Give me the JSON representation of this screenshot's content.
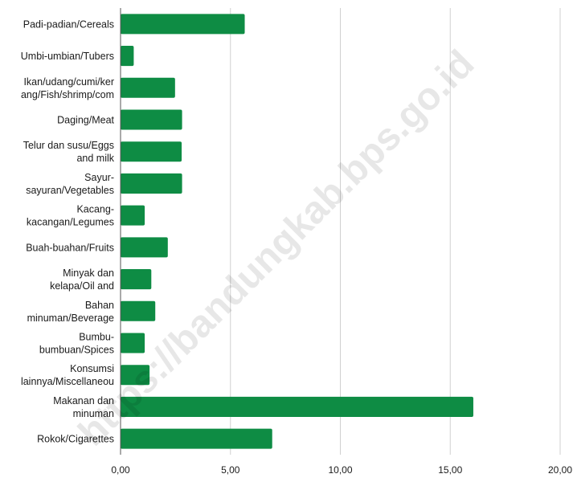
{
  "watermark": "https://bandungkab.bps.go.id",
  "chart_data": {
    "type": "bar",
    "orientation": "horizontal",
    "title": "",
    "xlabel": "",
    "ylabel": "",
    "categories": [
      [
        "Padi-padian/Cereals"
      ],
      [
        "Umbi-umbian/Tubers"
      ],
      [
        "Ikan/udang/cumi/ker",
        "ang/Fish/shrimp/com"
      ],
      [
        "Daging/Meat"
      ],
      [
        "Telur dan susu/Eggs",
        "and milk"
      ],
      [
        "Sayur-",
        "sayuran/Vegetables"
      ],
      [
        "Kacang-",
        "kacangan/Legumes"
      ],
      [
        "Buah-buahan/Fruits"
      ],
      [
        "Minyak dan",
        "kelapa/Oil and"
      ],
      [
        "Bahan",
        "minuman/Beverage"
      ],
      [
        "Bumbu-",
        "bumbuan/Spices"
      ],
      [
        "Konsumsi",
        "lainnya/Miscellaneou"
      ],
      [
        "Makanan dan",
        "minuman"
      ],
      [
        "Rokok/Cigarettes"
      ]
    ],
    "values": [
      5.65,
      0.6,
      2.48,
      2.8,
      2.78,
      2.8,
      1.1,
      2.15,
      1.4,
      1.58,
      1.1,
      1.32,
      16.05,
      6.9
    ],
    "xlim": [
      0,
      20
    ],
    "xticks": [
      "0,00",
      "5,00",
      "10,00",
      "15,00",
      "20,00"
    ],
    "grid": "vertical",
    "legend": "none",
    "colors": {
      "bar": "#0e8c44",
      "grid": "#d0d0d0",
      "axis": "#555555"
    }
  }
}
